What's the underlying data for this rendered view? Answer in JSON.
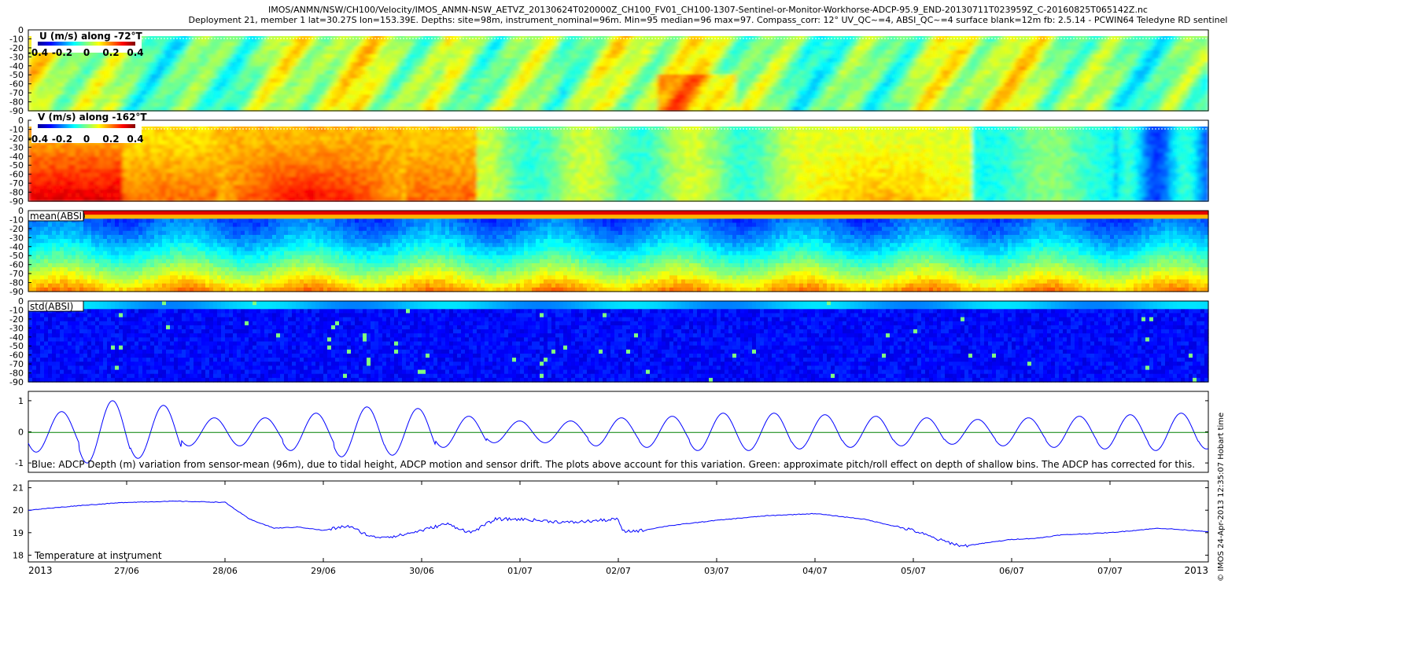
{
  "figure": {
    "title_line1": "IMOS/ANMN/NSW/CH100/Velocity/IMOS_ANMN-NSW_AETVZ_20130624T020000Z_CH100_FV01_CH100-1307-Sentinel-or-Monitor-Workhorse-ADCP-95.9_END-20130711T023959Z_C-20160825T065142Z.nc",
    "title_line2": "Deployment 21, member 1 lat=30.27S lon=153.39E. Depths: site=98m, instrument_nominal=96m. Min=95 median=96 max=97. Compass_corr: 12° UV_QC~=4, ABSI_QC~=4 surface blank=12m fb: 2.5.14 - PCWIN64 Teledyne RD sentinel",
    "side_stamp": "© IMOS 24-Apr-2013 12:35:07 Hobart time"
  },
  "chart_data": [
    {
      "type": "heatmap",
      "panel": "U",
      "title": "U (m/s) along -72°T",
      "colorbar_ticks": [
        "-0.4",
        "-0.2",
        "0",
        "0.2",
        "0.4"
      ],
      "clim": [
        -0.4,
        0.4
      ],
      "yticks": [
        "0",
        "-10",
        "-20",
        "-30",
        "-40",
        "-50",
        "-60",
        "-70",
        "-80",
        "-90"
      ],
      "ylim": [
        -90,
        0
      ],
      "surface_blank_m": 12
    },
    {
      "type": "heatmap",
      "panel": "V",
      "title": "V (m/s) along -162°T",
      "colorbar_ticks": [
        "-0.4",
        "-0.2",
        "0",
        "0.2",
        "0.4"
      ],
      "clim": [
        -0.4,
        0.4
      ],
      "yticks": [
        "0",
        "-10",
        "-20",
        "-30",
        "-40",
        "-50",
        "-60",
        "-70",
        "-80",
        "-90"
      ],
      "ylim": [
        -90,
        0
      ],
      "surface_blank_m": 12
    },
    {
      "type": "heatmap",
      "panel": "mean_absi",
      "title": "mean(ABSI)",
      "yticks": [
        "0",
        "-10",
        "-20",
        "-30",
        "-40",
        "-50",
        "-60",
        "-70",
        "-80",
        "-90"
      ],
      "ylim": [
        -90,
        0
      ]
    },
    {
      "type": "heatmap",
      "panel": "std_absi",
      "title": "std(ABSI)",
      "yticks": [
        "0",
        "-10",
        "-20",
        "-30",
        "-40",
        "-50",
        "-60",
        "-70",
        "-80",
        "-90"
      ],
      "ylim": [
        -90,
        0
      ]
    },
    {
      "type": "line",
      "panel": "depth_variation",
      "annotation": "Blue: ADCP Depth (m) variation from sensor-mean (96m), due to tidal height, ADCP motion and sensor drift. The plots above account for this variation. Green: approximate pitch/roll effect on depth of shallow bins. The ADCP has corrected for this.",
      "ylim": [
        -1.3,
        1.3
      ],
      "yticks": [
        "1",
        "0",
        "-1"
      ],
      "x_start": "2013-06-26",
      "x_end": "2013-07-08",
      "series": [
        {
          "color": "#0000ff",
          "tidal_amplitudes_m": [
            0.65,
            1.0,
            0.85,
            0.45,
            0.45,
            0.6,
            0.8,
            0.75,
            0.5,
            0.35,
            0.35,
            0.45,
            0.5,
            0.6,
            0.6,
            0.55,
            0.5,
            0.45,
            0.4,
            0.45,
            0.5,
            0.55,
            0.6,
            0.55,
            0.45
          ],
          "period_days": 0.5175
        },
        {
          "color": "#008000",
          "x": [
            "2013-06-26",
            "2013-07-08"
          ],
          "y": [
            -0.02,
            -0.02
          ]
        }
      ]
    },
    {
      "type": "line",
      "panel": "temperature",
      "annotation": "Temperature at instrument",
      "ylim": [
        17.7,
        21.3
      ],
      "yticks": [
        "21",
        "20",
        "19",
        "18"
      ],
      "x_start": "2013-06-26",
      "x_end": "2013-07-08",
      "xticks": [
        {
          "date": "2013-06-27",
          "label": "27/06"
        },
        {
          "date": "2013-06-28",
          "label": "28/06"
        },
        {
          "date": "2013-06-29",
          "label": "29/06"
        },
        {
          "date": "2013-06-30",
          "label": "30/06"
        },
        {
          "date": "2013-07-01",
          "label": "01/07"
        },
        {
          "date": "2013-07-02",
          "label": "02/07"
        },
        {
          "date": "2013-07-03",
          "label": "03/07"
        },
        {
          "date": "2013-07-04",
          "label": "04/07"
        },
        {
          "date": "2013-07-05",
          "label": "05/07"
        },
        {
          "date": "2013-07-06",
          "label": "06/07"
        },
        {
          "date": "2013-07-07",
          "label": "07/07"
        }
      ],
      "year_left": "2013",
      "year_right": "2013",
      "series": [
        {
          "color": "#0000ff",
          "x": [
            "2013-06-26 00:00",
            "2013-06-26 12:00",
            "2013-06-27 00:00",
            "2013-06-27 12:00",
            "2013-06-28 00:00",
            "2013-06-28 06:00",
            "2013-06-28 12:00",
            "2013-06-28 18:00",
            "2013-06-29 00:00",
            "2013-06-29 06:00",
            "2013-06-29 12:00",
            "2013-06-29 18:00",
            "2013-06-30 00:00",
            "2013-06-30 06:00",
            "2013-06-30 12:00",
            "2013-06-30 18:00",
            "2013-07-01 00:00",
            "2013-07-01 12:00",
            "2013-07-02 00:00",
            "2013-07-02 01:00",
            "2013-07-02 06:00",
            "2013-07-02 12:00",
            "2013-07-03 00:00",
            "2013-07-03 12:00",
            "2013-07-04 00:00",
            "2013-07-04 12:00",
            "2013-07-05 00:00",
            "2013-07-05 06:00",
            "2013-07-05 12:00",
            "2013-07-05 18:00",
            "2013-07-06 00:00",
            "2013-07-06 06:00",
            "2013-07-06 12:00",
            "2013-07-07 00:00",
            "2013-07-07 12:00",
            "2013-07-08 00:00"
          ],
          "y": [
            20.0,
            20.2,
            20.35,
            20.4,
            20.35,
            19.6,
            19.2,
            19.25,
            19.1,
            19.3,
            18.8,
            18.85,
            19.1,
            19.4,
            19.0,
            19.6,
            19.6,
            19.45,
            19.6,
            19.05,
            19.1,
            19.3,
            19.55,
            19.75,
            19.85,
            19.6,
            19.1,
            18.7,
            18.4,
            18.55,
            18.7,
            18.75,
            18.9,
            19.0,
            19.2,
            19.05
          ]
        }
      ]
    }
  ]
}
